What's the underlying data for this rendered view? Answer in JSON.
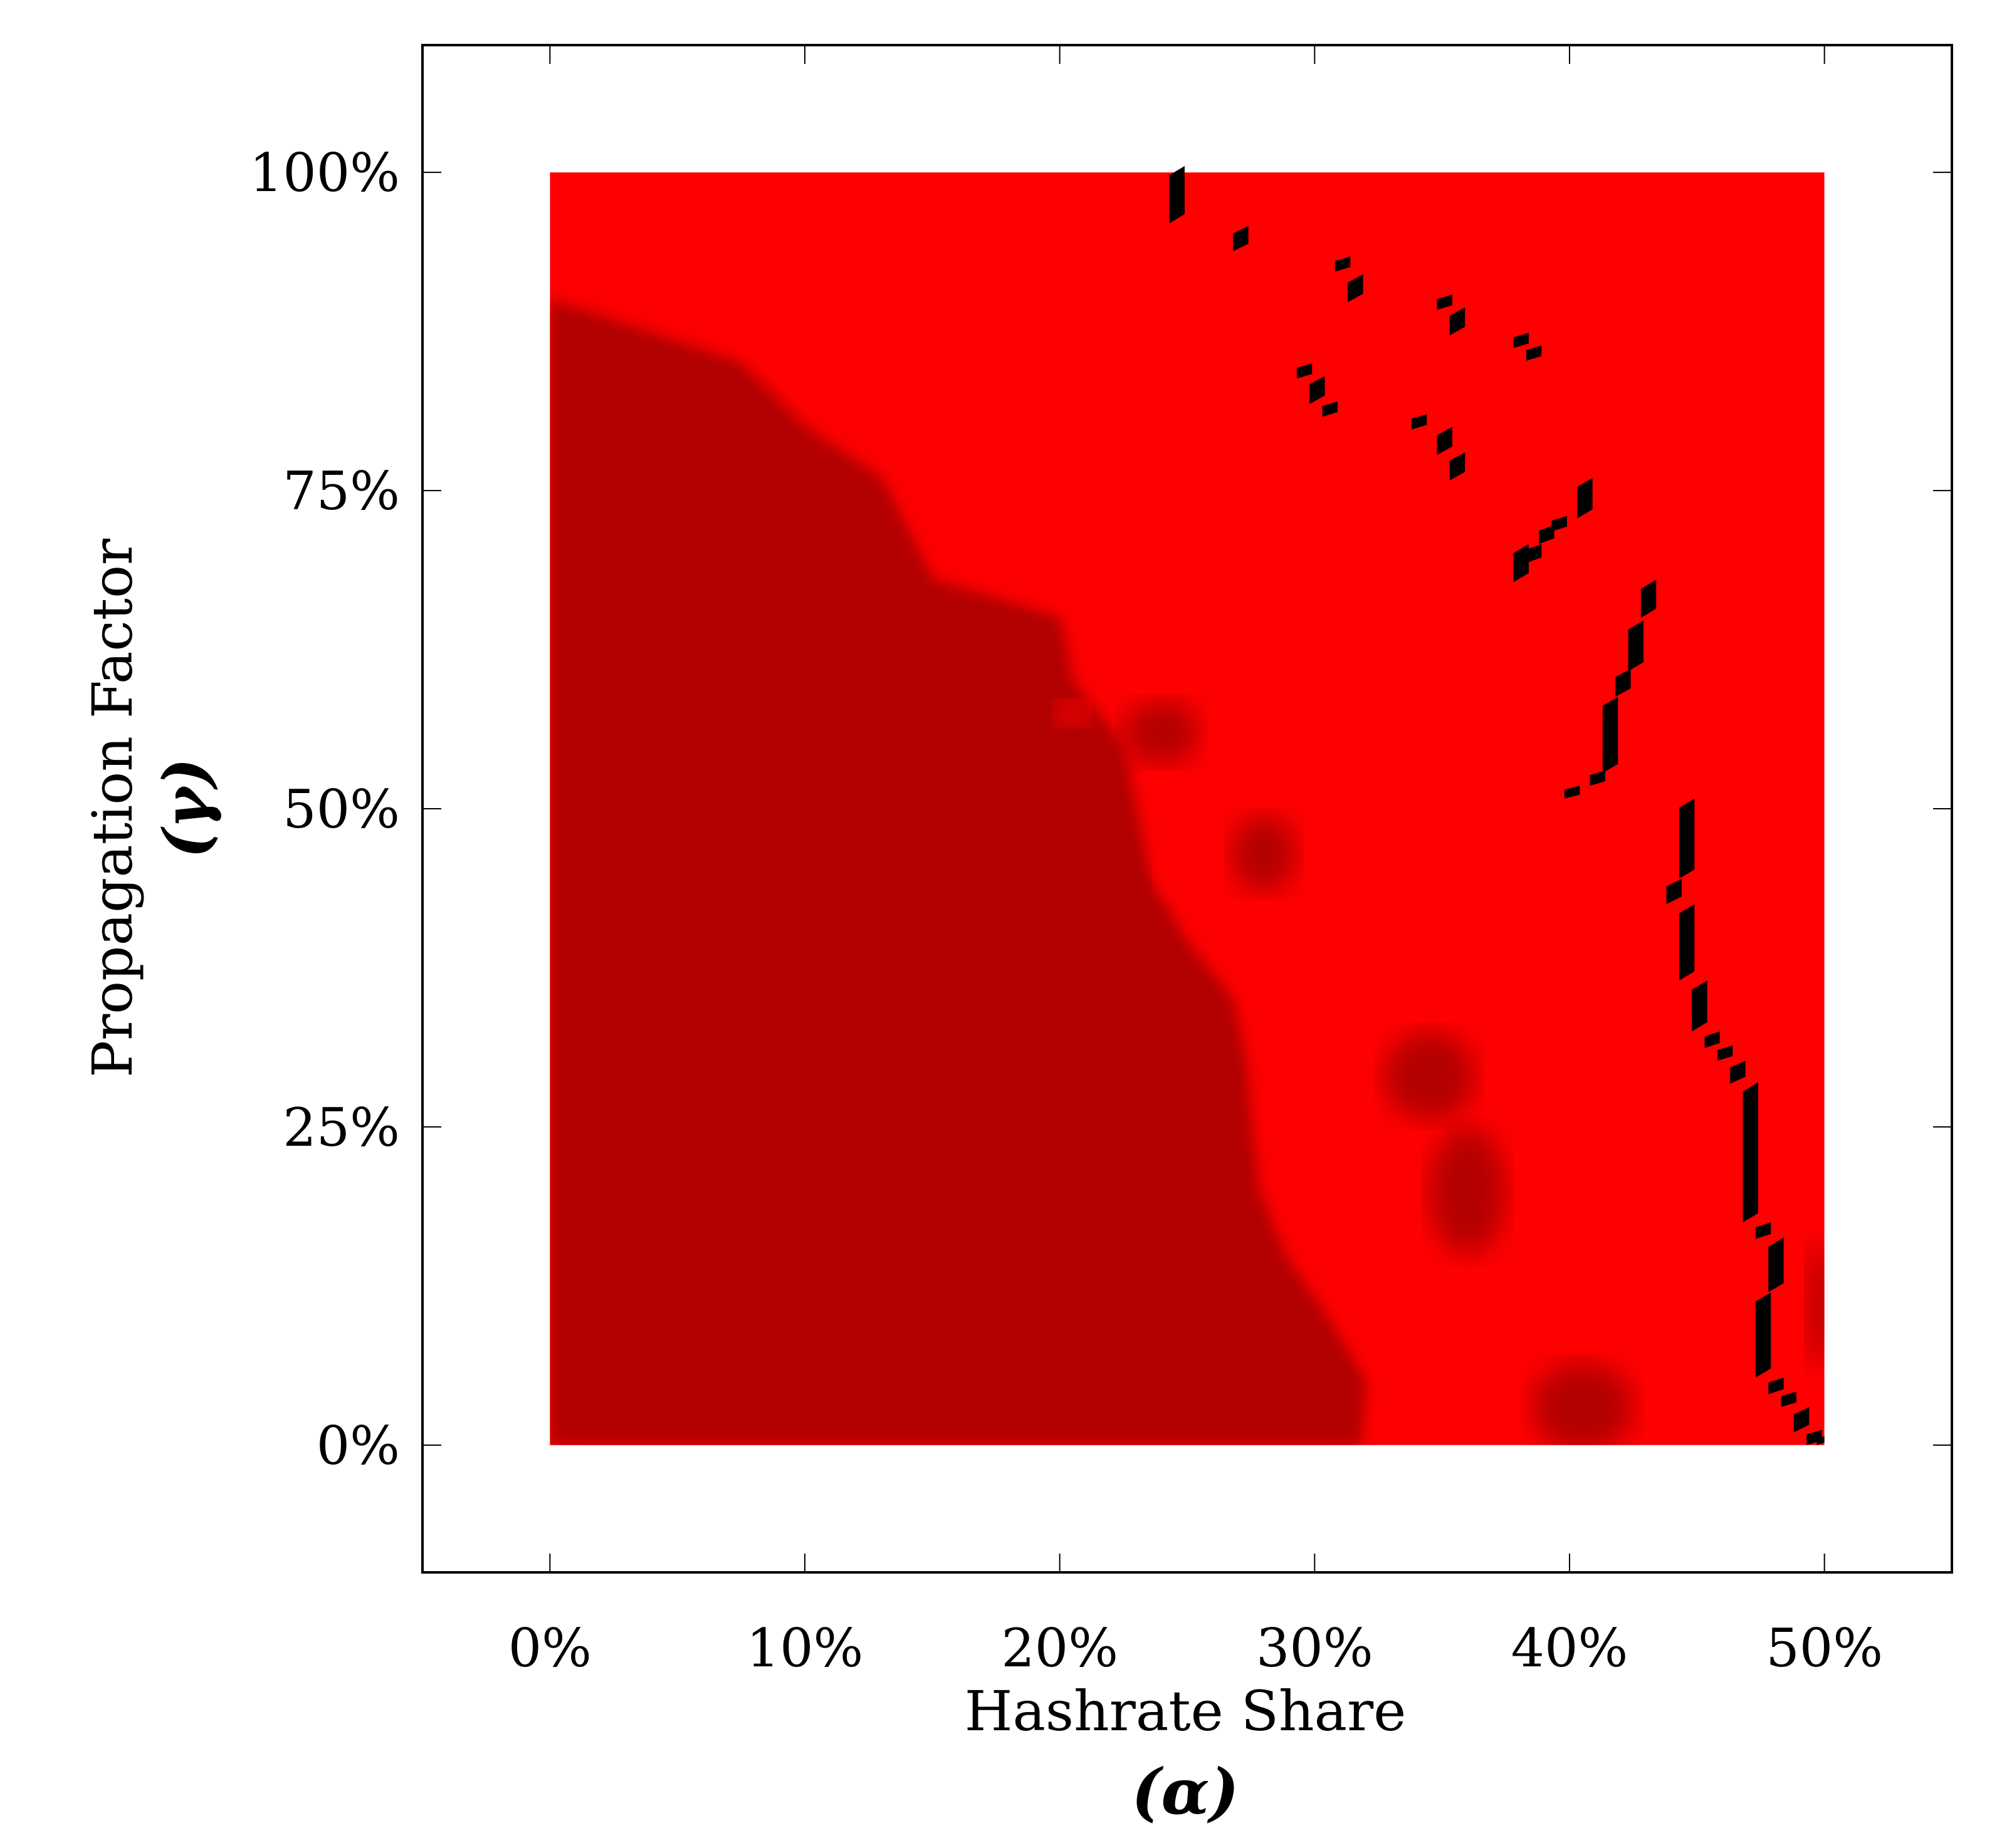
{
  "chart_data": {
    "type": "heatmap",
    "title": "",
    "xlabel": "Hashrate Share",
    "xlabel_symbol": "(α)",
    "ylabel": "Propagation Factor",
    "ylabel_symbol": "(γ)",
    "xlim": [
      -5,
      55
    ],
    "ylim": [
      -10,
      110
    ],
    "data_extent": {
      "x": [
        0,
        50
      ],
      "y": [
        0,
        100
      ]
    },
    "x_ticks": [
      0,
      10,
      20,
      30,
      40,
      50
    ],
    "x_tick_labels": [
      "0%",
      "10%",
      "20%",
      "30%",
      "40%",
      "50%"
    ],
    "y_ticks": [
      0,
      25,
      50,
      75,
      100
    ],
    "y_tick_labels": [
      "0%",
      "25%",
      "50%",
      "75%",
      "100%"
    ],
    "grid": false,
    "legend": "none",
    "colors": {
      "high": "#ff0000",
      "low": "#b30000",
      "mid": "#e80000",
      "boundary": "#000000",
      "axis": "#000000",
      "background": "#ffffff"
    },
    "regions": [
      {
        "name": "low",
        "boundary_x_at_y": [
          [
            0,
            31.8
          ],
          [
            5,
            32.0
          ],
          [
            10,
            30.5
          ],
          [
            15,
            28.8
          ],
          [
            20,
            27.8
          ],
          [
            25,
            27.5
          ],
          [
            30,
            27.3
          ],
          [
            35,
            26.8
          ],
          [
            40,
            24.8
          ],
          [
            45,
            23.5
          ],
          [
            50,
            23.0
          ],
          [
            55,
            22.5
          ],
          [
            60,
            20.5
          ],
          [
            65,
            20.0
          ],
          [
            68,
            15.0
          ],
          [
            72,
            14.0
          ],
          [
            76,
            13.0
          ],
          [
            80,
            10.0
          ],
          [
            85,
            7.5
          ],
          [
            90,
            0.0
          ]
        ]
      }
    ],
    "dark_blobs": [
      {
        "x": 40.5,
        "y": 3.0,
        "rx": 2.0,
        "ry": 3.5
      },
      {
        "x": 36.0,
        "y": 20.0,
        "rx": 1.5,
        "ry": 5.0
      },
      {
        "x": 34.5,
        "y": 29.0,
        "rx": 1.8,
        "ry": 3.5
      },
      {
        "x": 28.0,
        "y": 46.5,
        "rx": 1.3,
        "ry": 3.0
      },
      {
        "x": 24.0,
        "y": 56.0,
        "rx": 1.5,
        "ry": 2.5
      },
      {
        "x": 49.8,
        "y": 11.0,
        "rx": 0.5,
        "ry": 5.0
      }
    ],
    "bright_blobs": [
      {
        "x": 31.0,
        "y": 20.0,
        "rx": 1.5,
        "ry": 3.5
      },
      {
        "x": 36.0,
        "y": 5.5,
        "rx": 1.5,
        "ry": 3.5
      },
      {
        "x": 24.7,
        "y": 45.5,
        "rx": 0.9,
        "ry": 2.5
      },
      {
        "x": 20.5,
        "y": 57.5,
        "rx": 0.7,
        "ry": 1.0
      }
    ],
    "boundary_cells": [
      [
        24.3,
        96,
        0.6,
        4.5
      ],
      [
        26.8,
        93.8,
        0.6,
        2.0
      ],
      [
        30.8,
        92.2,
        0.6,
        1.2
      ],
      [
        31.3,
        89.8,
        0.6,
        2.2
      ],
      [
        34.8,
        89.2,
        0.6,
        1.2
      ],
      [
        35.3,
        87.2,
        0.6,
        2.2
      ],
      [
        37.8,
        86.2,
        0.6,
        1.2
      ],
      [
        38.3,
        85.2,
        0.6,
        1.2
      ],
      [
        29.3,
        83.8,
        0.6,
        1.2
      ],
      [
        29.8,
        81.8,
        0.6,
        2.2
      ],
      [
        30.3,
        80.8,
        0.6,
        1.2
      ],
      [
        33.8,
        79.8,
        0.6,
        1.2
      ],
      [
        34.8,
        77.8,
        0.6,
        2.2
      ],
      [
        35.3,
        75.8,
        0.6,
        2.2
      ],
      [
        40.3,
        72.8,
        0.6,
        3.2
      ],
      [
        37.8,
        67.8,
        0.6,
        3.0
      ],
      [
        38.3,
        69.3,
        0.6,
        1.5
      ],
      [
        38.8,
        70.8,
        0.6,
        1.5
      ],
      [
        39.3,
        71.8,
        0.6,
        1.2
      ],
      [
        42.8,
        65.0,
        0.6,
        3.0
      ],
      [
        42.3,
        60.8,
        0.6,
        4.0
      ],
      [
        41.8,
        58.8,
        0.6,
        2.2
      ],
      [
        41.3,
        52.8,
        0.6,
        6.0
      ],
      [
        40.8,
        51.8,
        0.6,
        1.2
      ],
      [
        39.8,
        50.8,
        0.6,
        1.0
      ],
      [
        44.3,
        44.5,
        0.6,
        6.3
      ],
      [
        43.8,
        42.5,
        0.6,
        2.0
      ],
      [
        44.3,
        36.5,
        0.6,
        6.0
      ],
      [
        44.8,
        32.5,
        0.6,
        4.0
      ],
      [
        45.3,
        31.2,
        0.6,
        1.3
      ],
      [
        45.8,
        30.2,
        0.6,
        1.2
      ],
      [
        46.3,
        28.4,
        0.6,
        1.8
      ],
      [
        46.8,
        17.5,
        0.6,
        11.0
      ],
      [
        47.3,
        16.2,
        0.6,
        1.3
      ],
      [
        47.8,
        12.0,
        0.6,
        4.3
      ],
      [
        47.3,
        5.3,
        0.6,
        6.7
      ],
      [
        47.8,
        4.0,
        0.6,
        1.3
      ],
      [
        48.3,
        3.0,
        0.6,
        1.2
      ],
      [
        48.8,
        1.0,
        0.6,
        2.0
      ],
      [
        49.3,
        0.0,
        0.6,
        1.2
      ],
      [
        49.7,
        0.0,
        0.3,
        0.7
      ]
    ]
  }
}
